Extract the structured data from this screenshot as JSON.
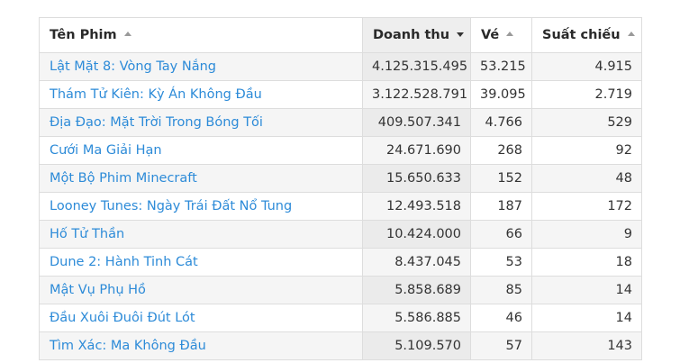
{
  "headers": {
    "title": "Tên Phim",
    "revenue": "Doanh thu",
    "tickets": "Vé",
    "screenings": "Suất chiếu"
  },
  "sort_icons": {
    "title": "sort-asc-icon",
    "revenue": "sort-desc-icon",
    "tickets": "sort-asc-icon",
    "screenings": "sort-asc-icon"
  },
  "rows": [
    {
      "title": "Lật Mặt 8: Vòng Tay Nắng",
      "revenue": "4.125.315.495",
      "tickets": "53.215",
      "screenings": "4.915"
    },
    {
      "title": "Thám Tử Kiên: Kỳ Án Không Đầu",
      "revenue": "3.122.528.791",
      "tickets": "39.095",
      "screenings": "2.719"
    },
    {
      "title": "Địa Đạo: Mặt Trời Trong Bóng Tối",
      "revenue": "409.507.341",
      "tickets": "4.766",
      "screenings": "529"
    },
    {
      "title": "Cưới Ma Giải Hạn",
      "revenue": "24.671.690",
      "tickets": "268",
      "screenings": "92"
    },
    {
      "title": "Một Bộ Phim Minecraft",
      "revenue": "15.650.633",
      "tickets": "152",
      "screenings": "48"
    },
    {
      "title": "Looney Tunes: Ngày Trái Đất Nổ Tung",
      "revenue": "12.493.518",
      "tickets": "187",
      "screenings": "172"
    },
    {
      "title": "Hố Tử Thần",
      "revenue": "10.424.000",
      "tickets": "66",
      "screenings": "9"
    },
    {
      "title": "Dune 2: Hành Tinh Cát",
      "revenue": "8.437.045",
      "tickets": "53",
      "screenings": "18"
    },
    {
      "title": "Mật Vụ Phụ Hồ",
      "revenue": "5.858.689",
      "tickets": "85",
      "screenings": "14"
    },
    {
      "title": "Đầu Xuôi Đuôi Đút Lót",
      "revenue": "5.586.885",
      "tickets": "46",
      "screenings": "14"
    },
    {
      "title": "Tìm Xác: Ma Không Đầu",
      "revenue": "5.109.570",
      "tickets": "57",
      "screenings": "143"
    }
  ]
}
